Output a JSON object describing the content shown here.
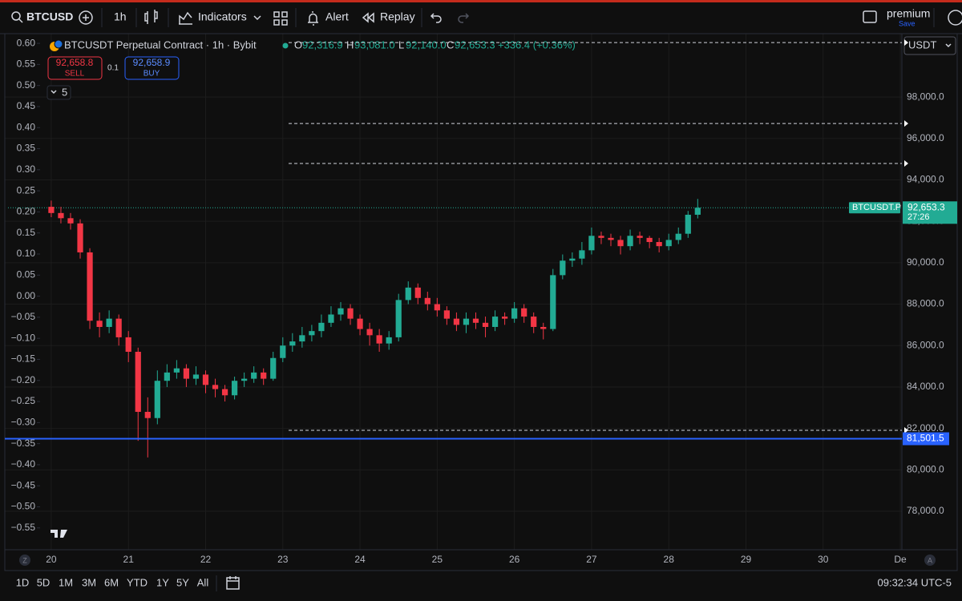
{
  "toolbar": {
    "symbol": "BTCUSD",
    "interval": "1h",
    "indicators": "Indicators",
    "alert": "Alert",
    "replay": "Replay",
    "account": "premium",
    "save": "Save"
  },
  "order_panel": {
    "sell_price": "92,658.8",
    "sell": "SELL",
    "quantity": "0.1",
    "buy_price": "92,658.9",
    "buy": "BUY",
    "depth": "5"
  },
  "legend": {
    "title": "BTCUSDT Perpetual Contract · 1h · Bybit",
    "o_label": "O",
    "open": "92,316.9",
    "h_label": "H",
    "high": "93,081.0",
    "l_label": "L",
    "low": "92,140.0",
    "c_label": "C",
    "close": "92,653.3",
    "change": "+336.4 (+0.36%)"
  },
  "currency": "USDT",
  "chart_data": {
    "type": "candlestick",
    "x": [
      20,
      20.125,
      20.25,
      20.375,
      20.5,
      20.625,
      20.75,
      20.875,
      21,
      21.125,
      21.25,
      21.375,
      21.5,
      21.625,
      21.75,
      21.875,
      22,
      22.125,
      22.25,
      22.375,
      22.5,
      22.625,
      22.75,
      22.875,
      23,
      23.125,
      23.25,
      23.375,
      23.5,
      23.625,
      23.75,
      23.875,
      24,
      24.125,
      24.25,
      24.375,
      24.5,
      24.625,
      24.75,
      24.875,
      25,
      25.125,
      25.25,
      25.375,
      25.5,
      25.625,
      25.75,
      25.875,
      26,
      26.125,
      26.25,
      26.375,
      26.5,
      26.625,
      26.75,
      26.875,
      27,
      27.125,
      27.25,
      27.375,
      27.5,
      27.625,
      27.75,
      27.875,
      28,
      28.125,
      28.25,
      28.375
    ],
    "open": [
      92700,
      92400,
      92150,
      91900,
      90500,
      87200,
      86900,
      87300,
      86400,
      85700,
      82800,
      82500,
      84300,
      84700,
      84900,
      84400,
      84600,
      84100,
      83900,
      83600,
      84300,
      84400,
      84700,
      84400,
      85400,
      86000,
      86200,
      86500,
      86700,
      87100,
      87500,
      87800,
      87300,
      86800,
      86500,
      86100,
      86400,
      88200,
      88800,
      88300,
      88000,
      87700,
      87300,
      87000,
      87300,
      87100,
      86900,
      87400,
      87300,
      87800,
      87400,
      86900,
      86800,
      89400,
      90100,
      90200,
      90600,
      91300,
      91200,
      91100,
      90800,
      91300,
      91200,
      91000,
      90800,
      91100,
      91400,
      92316.9
    ],
    "high": [
      93000,
      92700,
      92400,
      92100,
      90700,
      87600,
      87700,
      87500,
      86700,
      85900,
      83500,
      84800,
      85100,
      85300,
      85100,
      85000,
      84800,
      84400,
      84100,
      84500,
      84700,
      85000,
      84900,
      85700,
      86400,
      86600,
      86900,
      87000,
      87500,
      87900,
      88100,
      88000,
      87500,
      87100,
      86800,
      86700,
      88500,
      89100,
      89000,
      88600,
      88300,
      87900,
      87600,
      87600,
      87600,
      87400,
      87700,
      87600,
      88100,
      88000,
      87600,
      87100,
      89700,
      90400,
      90500,
      91000,
      91700,
      91500,
      91400,
      91300,
      91600,
      91500,
      91300,
      91200,
      91400,
      91700,
      92500,
      93081
    ],
    "low": [
      92200,
      91900,
      91600,
      90200,
      86800,
      86400,
      86600,
      86000,
      85200,
      81400,
      80600,
      82200,
      84000,
      84400,
      84000,
      84100,
      83700,
      83500,
      83300,
      83400,
      84000,
      84200,
      84100,
      84300,
      85200,
      85700,
      85900,
      86200,
      86400,
      86900,
      87200,
      87000,
      86500,
      86000,
      85700,
      85800,
      86200,
      88000,
      88000,
      87700,
      87400,
      87000,
      86700,
      86600,
      86800,
      86400,
      86700,
      87000,
      87100,
      87100,
      86600,
      86300,
      86700,
      89200,
      89800,
      89900,
      90400,
      90900,
      90800,
      90400,
      90600,
      90900,
      90700,
      90500,
      90600,
      90900,
      91200,
      92140
    ],
    "close": [
      92400,
      92150,
      91900,
      90500,
      87200,
      86900,
      87300,
      86400,
      85700,
      82800,
      82500,
      84300,
      84700,
      84900,
      84400,
      84600,
      84100,
      83900,
      83600,
      84300,
      84400,
      84700,
      84400,
      85400,
      86000,
      86200,
      86500,
      86700,
      87100,
      87500,
      87800,
      87300,
      86800,
      86500,
      86100,
      86400,
      88200,
      88800,
      88300,
      88000,
      87700,
      87300,
      87000,
      87300,
      87100,
      86900,
      87400,
      87300,
      87800,
      87400,
      86900,
      86800,
      89400,
      90100,
      90200,
      90600,
      91300,
      91200,
      91100,
      90800,
      91300,
      91200,
      91000,
      90800,
      91100,
      91400,
      92316.9,
      92653.3
    ],
    "up_color": "#22ab94",
    "down_color": "#f23645",
    "xlim": [
      19.44,
      31.02
    ],
    "xticks": [
      20,
      21,
      22,
      23,
      24,
      25,
      26,
      27,
      28,
      29,
      30,
      {
        "value": 31,
        "label": "De"
      }
    ],
    "ylim": [
      76260,
      101060
    ],
    "yticks": [
      {
        "value": 78000,
        "label": "78,000.0"
      },
      {
        "value": 80000,
        "label": "80,000.0"
      },
      {
        "value": 82000,
        "label": "82,000.0"
      },
      {
        "value": 84000,
        "label": "84,000.0"
      },
      {
        "value": 86000,
        "label": "86,000.0"
      },
      {
        "value": 88000,
        "label": "88,000.0"
      },
      {
        "value": 90000,
        "label": "90,000.0"
      },
      {
        "value": 92000,
        "label": "92,000.0"
      },
      {
        "value": 94000,
        "label": "94,000.0"
      },
      {
        "value": 96000,
        "label": "96,000.0"
      },
      {
        "value": 98000,
        "label": "98,000.0"
      }
    ],
    "y2lim": [
      -0.596,
      0.623
    ],
    "y2ticks": [
      {
        "value": 0.6,
        "label": "0.60"
      },
      {
        "value": 0.55,
        "label": "0.55"
      },
      {
        "value": 0.5,
        "label": "0.50"
      },
      {
        "value": 0.45,
        "label": "0.45"
      },
      {
        "value": 0.4,
        "label": "0.40"
      },
      {
        "value": 0.35,
        "label": "0.35"
      },
      {
        "value": 0.3,
        "label": "0.30"
      },
      {
        "value": 0.25,
        "label": "0.25"
      },
      {
        "value": 0.2,
        "label": "0.20"
      },
      {
        "value": 0.15,
        "label": "0.15"
      },
      {
        "value": 0.1,
        "label": "0.10"
      },
      {
        "value": 0.05,
        "label": "0.05"
      },
      {
        "value": 0,
        "label": "0.00"
      },
      {
        "value": -0.05,
        "label": "−0.05"
      },
      {
        "value": -0.1,
        "label": "−0.10"
      },
      {
        "value": -0.15,
        "label": "−0.15"
      },
      {
        "value": -0.2,
        "label": "−0.20"
      },
      {
        "value": -0.25,
        "label": "−0.25"
      },
      {
        "value": -0.3,
        "label": "−0.30"
      },
      {
        "value": -0.35,
        "label": "−0.35"
      },
      {
        "value": -0.4,
        "label": "−0.40"
      },
      {
        "value": -0.45,
        "label": "−0.45"
      },
      {
        "value": -0.5,
        "label": "−0.50"
      },
      {
        "value": -0.55,
        "label": "−0.55"
      }
    ],
    "grid": true,
    "levels": [
      100630,
      96720,
      94790,
      81910
    ],
    "price_line": {
      "value": 81501.5,
      "label": "81,501.5",
      "color": "#2962ff"
    },
    "last_price": {
      "name": "BTCUSDT.P",
      "value": 92653.3,
      "label": "92,653.3",
      "countdown": "27:26",
      "color": "#22ab94"
    }
  },
  "bottom_bar": {
    "ranges": [
      "1D",
      "5D",
      "1M",
      "3M",
      "6M",
      "YTD",
      "1Y",
      "5Y",
      "All"
    ],
    "time": "09:32:34 UTC-5",
    "scale_left": "Z",
    "scale_right": "A"
  }
}
